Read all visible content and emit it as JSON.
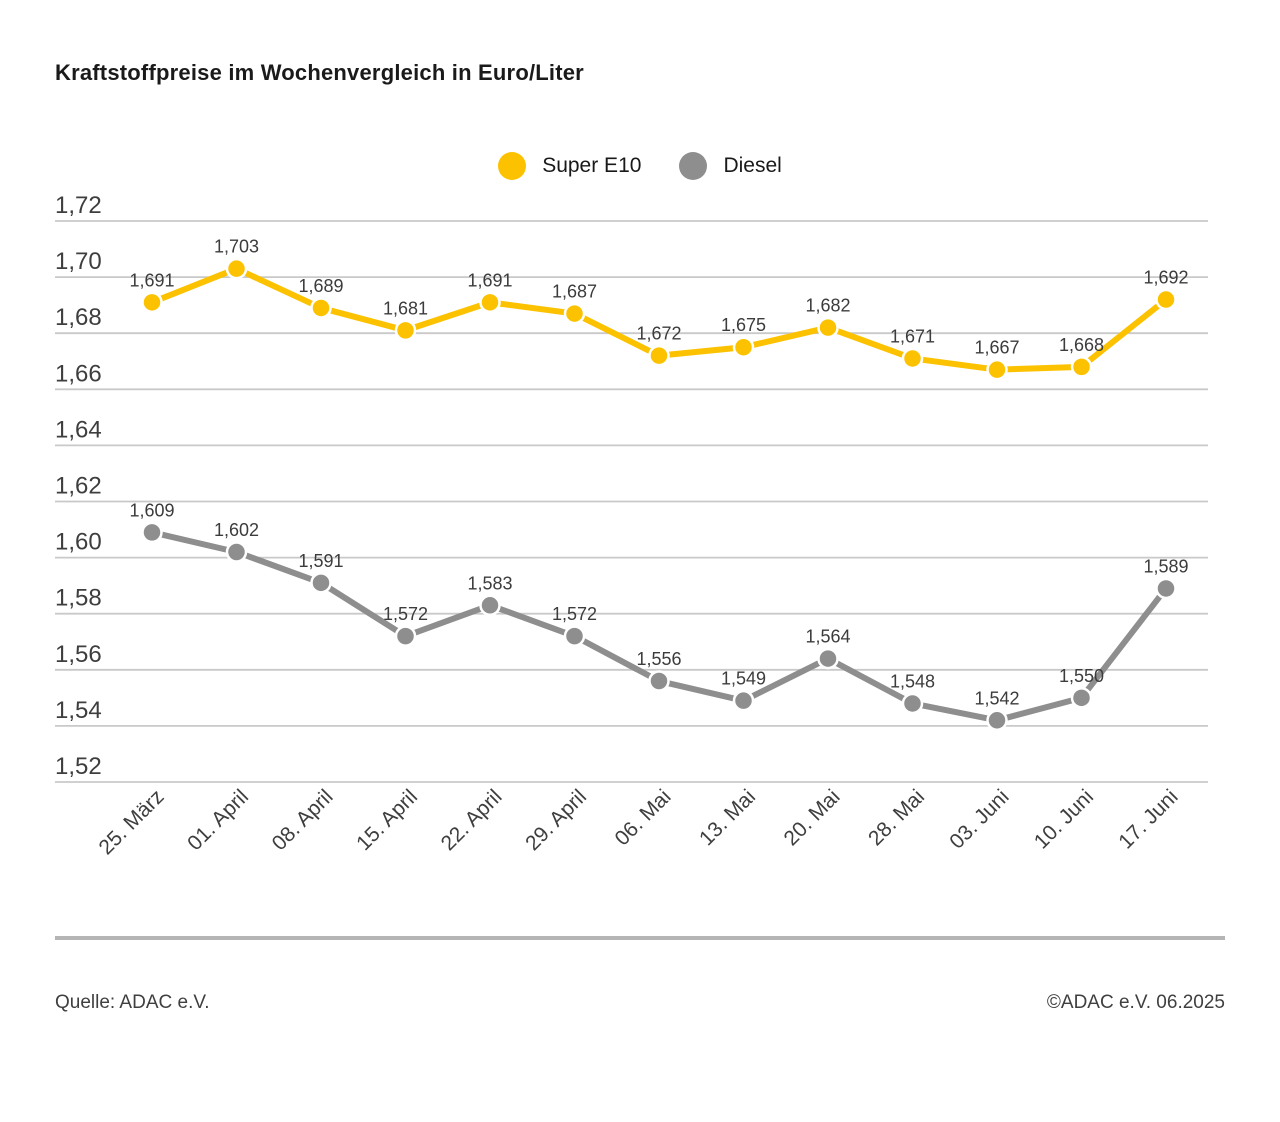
{
  "title": "Kraftstoffpreise im Wochenvergleich in Euro/Liter",
  "chart_data": {
    "type": "line",
    "title": "Kraftstoffpreise im Wochenvergleich in Euro/Liter",
    "categories": [
      "25. März",
      "01. April",
      "08. April",
      "15. April",
      "22. April",
      "29. April",
      "06. Mai",
      "13. Mai",
      "20. Mai",
      "28. Mai",
      "03. Juni",
      "10. Juni",
      "17. Juni"
    ],
    "series": [
      {
        "name": "Super E10",
        "color": "#fcc200",
        "values": [
          1.691,
          1.703,
          1.689,
          1.681,
          1.691,
          1.687,
          1.672,
          1.675,
          1.682,
          1.671,
          1.667,
          1.668,
          1.692
        ],
        "labels": [
          "1,691",
          "1,703",
          "1,689",
          "1,681",
          "1,691",
          "1,687",
          "1,672",
          "1,675",
          "1,682",
          "1,671",
          "1,667",
          "1,668",
          "1,692"
        ]
      },
      {
        "name": "Diesel",
        "color": "#8e8e8e",
        "values": [
          1.609,
          1.602,
          1.591,
          1.572,
          1.583,
          1.572,
          1.556,
          1.549,
          1.564,
          1.548,
          1.542,
          1.55,
          1.589
        ],
        "labels": [
          "1,609",
          "1,602",
          "1,591",
          "1,572",
          "1,583",
          "1,572",
          "1,556",
          "1,549",
          "1,564",
          "1,548",
          "1,542",
          "1,550",
          "1,589"
        ]
      }
    ],
    "yticks": {
      "values": [
        1.72,
        1.7,
        1.68,
        1.66,
        1.64,
        1.62,
        1.6,
        1.58,
        1.56,
        1.54,
        1.52
      ],
      "labels": [
        "1,72",
        "1,70",
        "1,68",
        "1,66",
        "1,64",
        "1,62",
        "1,60",
        "1,58",
        "1,56",
        "1,54",
        "1,52"
      ]
    },
    "ylim": [
      1.52,
      1.72
    ],
    "grid": true,
    "legend_position": "top-center",
    "ylabel": "",
    "xlabel": ""
  },
  "colors": {
    "grid_line": "#c9c9c9",
    "axis_text": "#3e3e3e",
    "label_text": "#3c3c3c",
    "separator": "#b5b5b5"
  },
  "footer": {
    "source": "Quelle: ADAC e.V.",
    "copyright": "©ADAC e.V. 06.2025"
  }
}
